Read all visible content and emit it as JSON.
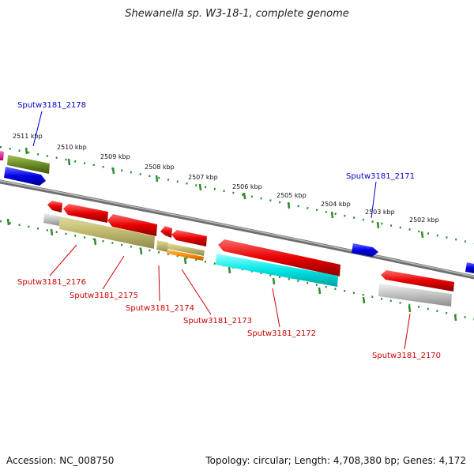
{
  "title": "Shewanella sp. W3-18-1, complete genome",
  "accession": "Accession: NC_008750",
  "summary": "Topology: circular; Length: 4,708,380 bp; Genes: 4,172",
  "colors": {
    "backbone": "#8a8a8a",
    "tick": "#2e8b2e",
    "gene_red": "#e60000",
    "gene_blue": "#0000e6",
    "gene_magenta": "#e6008c",
    "cog_olive": "#6b8e23",
    "cog_khaki": "#bdb76b",
    "cog_tan": "#c8c08a",
    "cog_orange": "#ff8c00",
    "cog_cyan": "#00e6e6",
    "cog_grey": "#c0c0c0",
    "label_plus": "#0000cc",
    "label_minus": "#cc0000"
  },
  "kbp_labels": [
    "2511 kbp",
    "2510 kbp",
    "2509 kbp",
    "2508 kbp",
    "2507 kbp",
    "2506 kbp",
    "2505 kbp",
    "2504 kbp",
    "2503 kbp",
    "2502 kbp"
  ],
  "gene_labels": [
    {
      "text": "Sputw3181_2178",
      "strand": "plus"
    },
    {
      "text": "Sputw3181_2171",
      "strand": "plus"
    },
    {
      "text": "Sputw3181_2176",
      "strand": "minus"
    },
    {
      "text": "Sputw3181_2175",
      "strand": "minus"
    },
    {
      "text": "Sputw3181_2174",
      "strand": "minus"
    },
    {
      "text": "Sputw3181_2173",
      "strand": "minus"
    },
    {
      "text": "Sputw3181_2172",
      "strand": "minus"
    },
    {
      "text": "Sputw3181_2170",
      "strand": "minus"
    }
  ]
}
